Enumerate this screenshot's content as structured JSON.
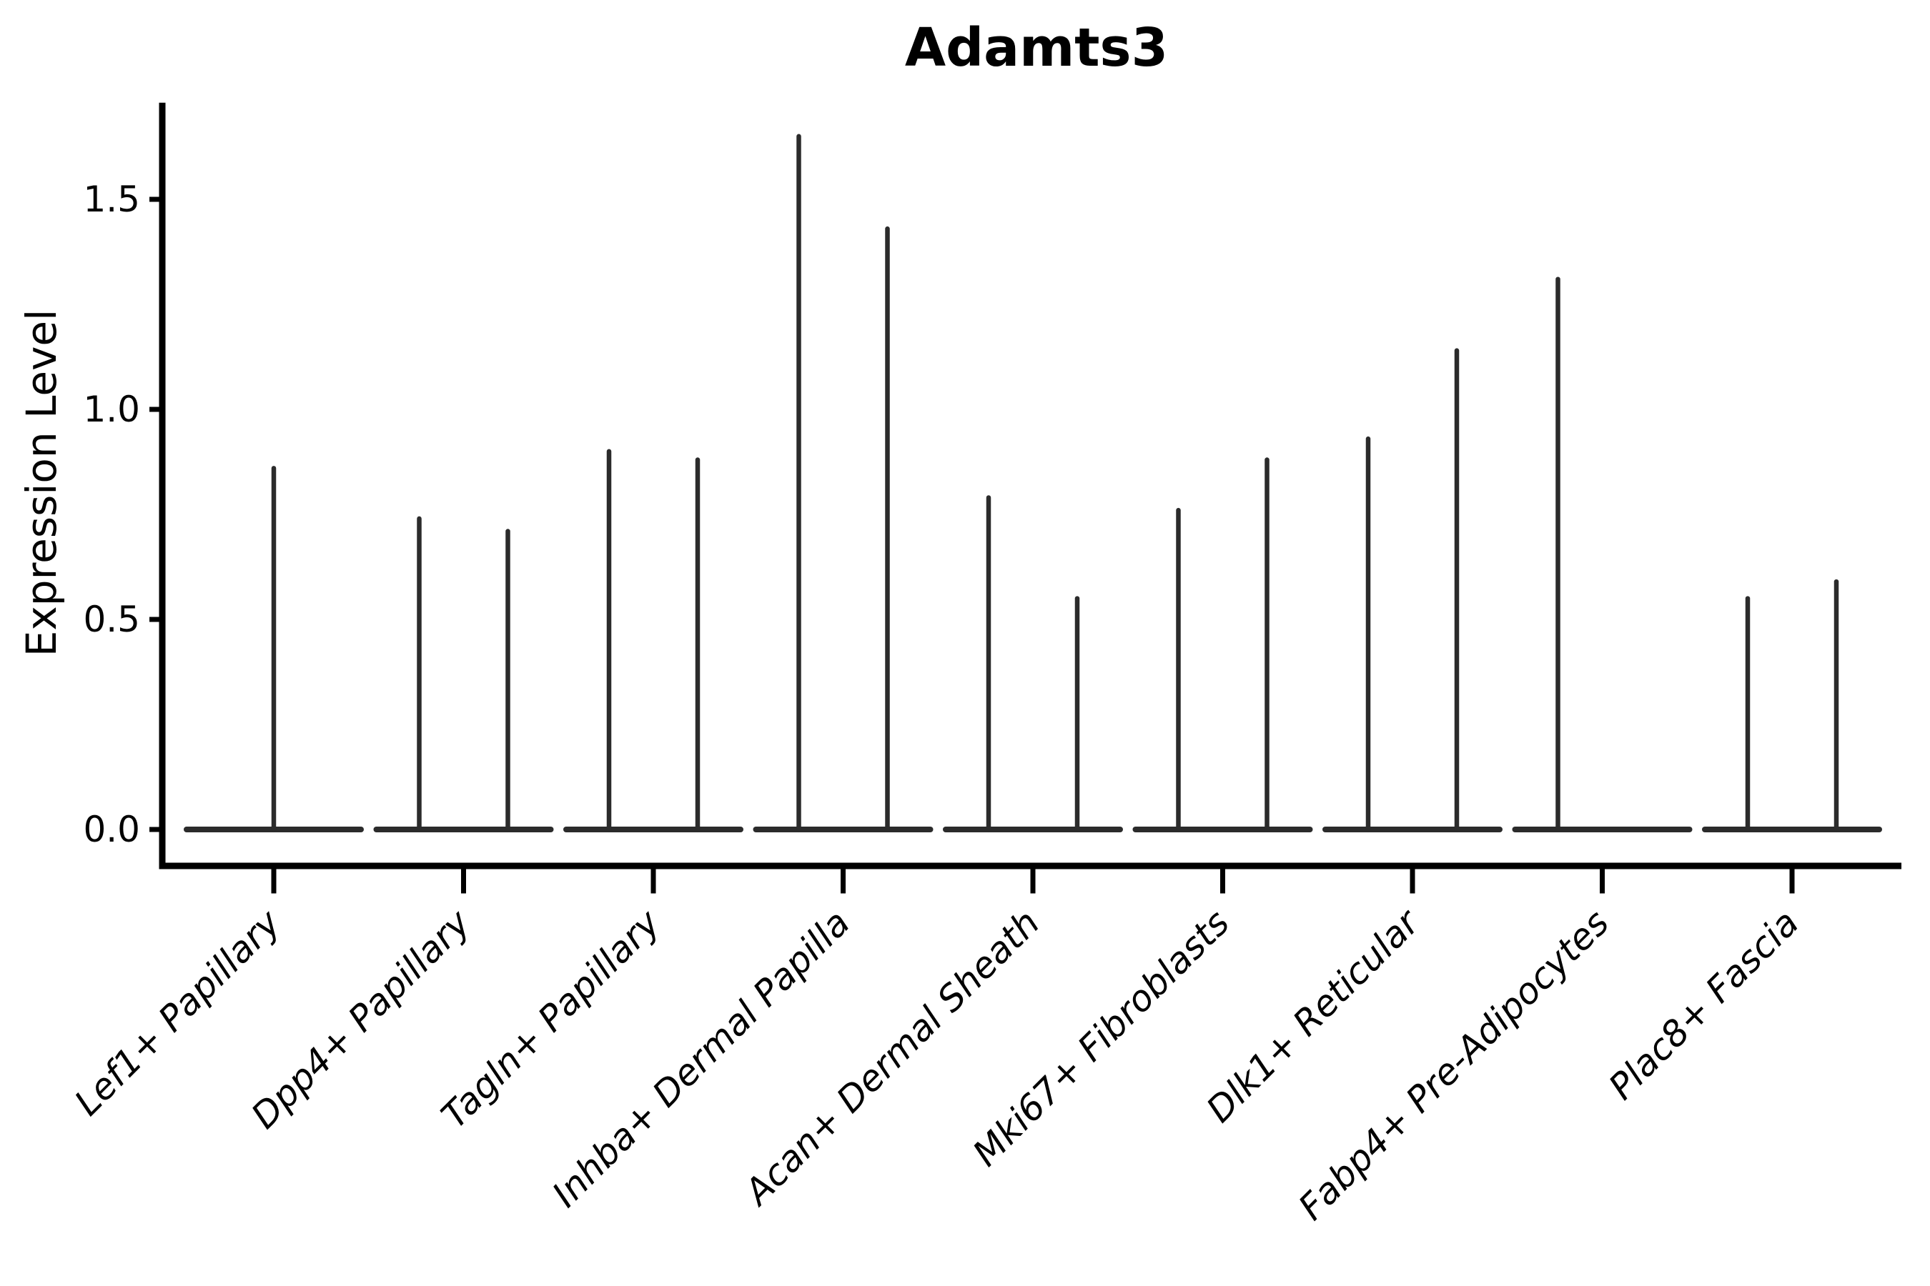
{
  "chart_data": {
    "type": "violin",
    "title": "Adamts3",
    "ylabel": "Expression Level",
    "xlabel": "",
    "yticks": [
      0,
      0.5,
      1,
      1.5
    ],
    "ytick_labels": [
      "0.0",
      "0.5",
      "1.0",
      "1.5"
    ],
    "ylim": [
      -0.08,
      1.73
    ],
    "grid": false,
    "legend": "none",
    "baseline_value": 0,
    "categories": [
      "Lef1+ Papillary",
      "Dpp4+ Papillary",
      "Tagln+ Papillary",
      "Inhba+ Dermal Papilla",
      "Acan+ Dermal Sheath",
      "Mki67+ Fibroblasts",
      "Dlk1+ Reticular",
      "Fabp4+ Pre-Adipocytes",
      "Plac8+ Fascia"
    ],
    "groups": [
      {
        "category": "Lef1+ Papillary",
        "violins": [
          {
            "position": "center",
            "max_expression": 0.86
          }
        ]
      },
      {
        "category": "Dpp4+ Papillary",
        "violins": [
          {
            "position": "left",
            "max_expression": 0.74
          },
          {
            "position": "right",
            "max_expression": 0.71
          }
        ]
      },
      {
        "category": "Tagln+ Papillary",
        "violins": [
          {
            "position": "left",
            "max_expression": 0.9
          },
          {
            "position": "right",
            "max_expression": 0.88
          }
        ]
      },
      {
        "category": "Inhba+ Dermal Papilla",
        "violins": [
          {
            "position": "left",
            "max_expression": 1.65
          },
          {
            "position": "right",
            "max_expression": 1.43
          }
        ]
      },
      {
        "category": "Acan+ Dermal Sheath",
        "violins": [
          {
            "position": "left",
            "max_expression": 0.79
          },
          {
            "position": "right",
            "max_expression": 0.55
          }
        ]
      },
      {
        "category": "Mki67+ Fibroblasts",
        "violins": [
          {
            "position": "left",
            "max_expression": 0.76
          },
          {
            "position": "right",
            "max_expression": 0.88
          }
        ]
      },
      {
        "category": "Dlk1+ Reticular",
        "violins": [
          {
            "position": "left",
            "max_expression": 0.93
          },
          {
            "position": "right",
            "max_expression": 1.14
          }
        ]
      },
      {
        "category": "Fabp4+ Pre-Adipocytes",
        "violins": [
          {
            "position": "left",
            "max_expression": 1.31
          }
        ]
      },
      {
        "category": "Plac8+ Fascia",
        "violins": [
          {
            "position": "left",
            "max_expression": 0.55
          },
          {
            "position": "right",
            "max_expression": 0.59
          }
        ]
      }
    ],
    "colors": {
      "violin_stroke": "#2b2b2b",
      "axis": "#000000",
      "text": "#000000",
      "background": "#ffffff"
    }
  }
}
